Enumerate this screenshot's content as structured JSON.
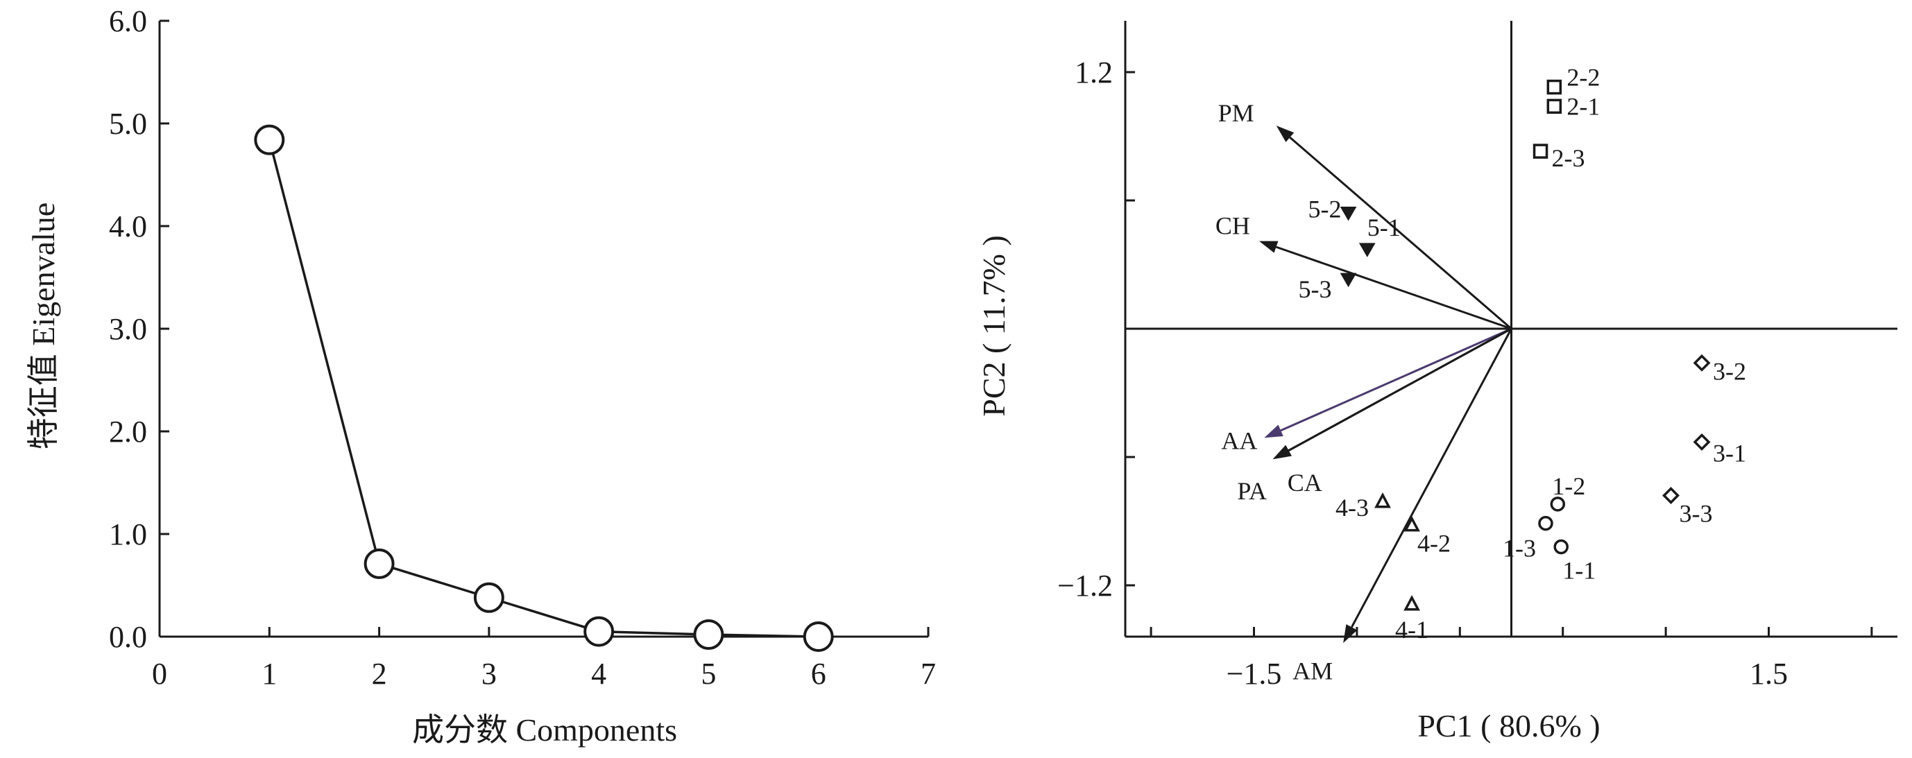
{
  "chart_data": [
    {
      "type": "line",
      "xlabel": "成分数 Components",
      "ylabel": "特征值 Eigenvalue",
      "xlim": [
        0,
        7
      ],
      "ylim": [
        0,
        6
      ],
      "x_ticks": [
        "0",
        "1",
        "2",
        "3",
        "4",
        "5",
        "6",
        "7"
      ],
      "y_ticks": [
        "0.0",
        "1.0",
        "2.0",
        "3.0",
        "4.0",
        "5.0",
        "6.0"
      ],
      "grid": false,
      "marker": "open-circle",
      "series": [
        {
          "x": [
            1,
            2,
            3,
            4,
            5,
            6
          ],
          "values": [
            4.84,
            0.71,
            0.38,
            0.05,
            0.02,
            0.0
          ]
        }
      ]
    },
    {
      "type": "scatter",
      "subtype": "pca-biplot",
      "xlabel": "PC1 ( 80.6% )",
      "ylabel": "PC2 ( 11.7% )",
      "xlim": [
        -2.25,
        2.25
      ],
      "ylim": [
        -1.44,
        1.44
      ],
      "x_ticks": [
        "−1.5",
        "1.5"
      ],
      "y_ticks": [
        "1.2",
        "−1.2"
      ],
      "grid": false,
      "series": [
        {
          "marker": "circle",
          "points": [
            {
              "label": "1-1",
              "x": 0.29,
              "y": -1.02
            },
            {
              "label": "1-2",
              "x": 0.27,
              "y": -0.82
            },
            {
              "label": "1-3",
              "x": 0.2,
              "y": -0.91
            }
          ]
        },
        {
          "marker": "square",
          "points": [
            {
              "label": "2-1",
              "x": 0.25,
              "y": 1.04
            },
            {
              "label": "2-2",
              "x": 0.25,
              "y": 1.13
            },
            {
              "label": "2-3",
              "x": 0.17,
              "y": 0.83
            }
          ]
        },
        {
          "marker": "diamond",
          "points": [
            {
              "label": "3-1",
              "x": 1.11,
              "y": -0.53
            },
            {
              "label": "3-2",
              "x": 1.11,
              "y": -0.16
            },
            {
              "label": "3-3",
              "x": 0.93,
              "y": -0.78
            }
          ]
        },
        {
          "marker": "triangle-up",
          "points": [
            {
              "label": "4-1",
              "x": -0.58,
              "y": -1.29
            },
            {
              "label": "4-2",
              "x": -0.58,
              "y": -0.92
            },
            {
              "label": "4-3",
              "x": -0.75,
              "y": -0.81
            }
          ]
        },
        {
          "marker": "triangle-down",
          "points": [
            {
              "label": "5-1",
              "x": -0.84,
              "y": 0.37
            },
            {
              "label": "5-2",
              "x": -0.95,
              "y": 0.54
            },
            {
              "label": "5-3",
              "x": -0.95,
              "y": 0.23
            }
          ]
        }
      ],
      "loadings": [
        {
          "label": "PM",
          "x": -1.37,
          "y": 0.95
        },
        {
          "label": "CH",
          "x": -1.47,
          "y": 0.41
        },
        {
          "label": "AA",
          "x": -1.44,
          "y": -0.51
        },
        {
          "label": "CA",
          "x": -1.39,
          "y": -0.61
        },
        {
          "label": "PA",
          "x": -1.39,
          "y": -0.61
        },
        {
          "label": "AM",
          "x": -0.98,
          "y": -1.47
        }
      ],
      "colors": {
        "AA_arrow": "#4b3a6e",
        "default": "#1a1a1a"
      }
    }
  ]
}
